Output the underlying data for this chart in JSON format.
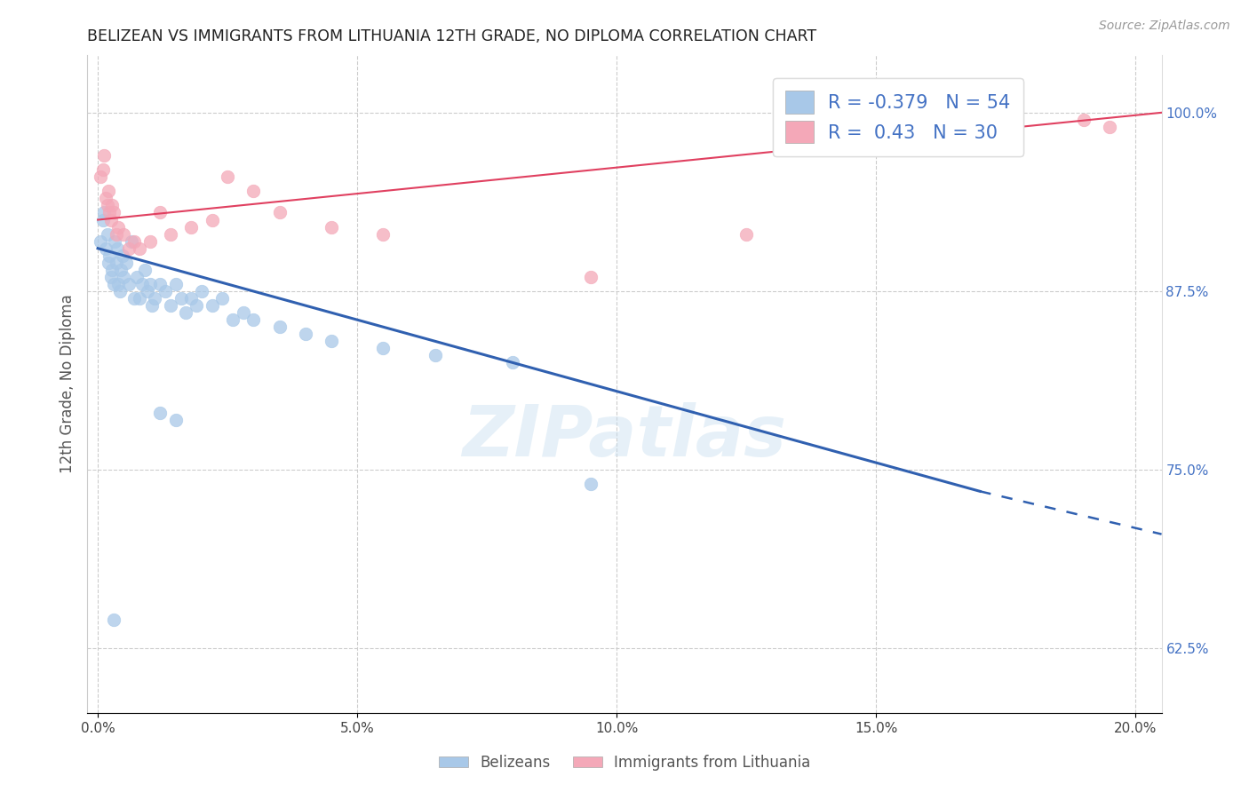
{
  "title": "BELIZEAN VS IMMIGRANTS FROM LITHUANIA 12TH GRADE, NO DIPLOMA CORRELATION CHART",
  "source": "Source: ZipAtlas.com",
  "xlabel_vals": [
    0.0,
    5.0,
    10.0,
    15.0,
    20.0
  ],
  "ylabel": "12th Grade, No Diploma",
  "ylabel_vals": [
    62.5,
    75.0,
    87.5,
    100.0
  ],
  "xlim": [
    -0.2,
    20.5
  ],
  "ylim": [
    58.0,
    104.0
  ],
  "blue_R": -0.379,
  "blue_N": 54,
  "pink_R": 0.43,
  "pink_N": 30,
  "blue_color": "#a8c8e8",
  "pink_color": "#f4a8b8",
  "blue_edge_color": "#a8c8e8",
  "pink_edge_color": "#f4a8b8",
  "blue_line_color": "#3060b0",
  "pink_line_color": "#e04060",
  "legend_label_blue": "Belizeans",
  "legend_label_pink": "Immigrants from Lithuania",
  "watermark": "ZIPatlas",
  "blue_x": [
    0.05,
    0.1,
    0.12,
    0.15,
    0.18,
    0.2,
    0.22,
    0.25,
    0.28,
    0.3,
    0.32,
    0.35,
    0.38,
    0.4,
    0.42,
    0.45,
    0.48,
    0.5,
    0.55,
    0.6,
    0.65,
    0.7,
    0.75,
    0.8,
    0.85,
    0.9,
    0.95,
    1.0,
    1.05,
    1.1,
    1.2,
    1.3,
    1.4,
    1.5,
    1.6,
    1.7,
    1.8,
    1.9,
    2.0,
    2.2,
    2.4,
    2.6,
    2.8,
    3.0,
    3.5,
    4.0,
    4.5,
    5.5,
    6.5,
    8.0,
    9.5,
    0.3,
    1.2,
    1.5
  ],
  "blue_y": [
    91.0,
    92.5,
    93.0,
    90.5,
    91.5,
    89.5,
    90.0,
    88.5,
    89.0,
    88.0,
    91.0,
    89.5,
    90.5,
    88.0,
    87.5,
    89.0,
    90.0,
    88.5,
    89.5,
    88.0,
    91.0,
    87.0,
    88.5,
    87.0,
    88.0,
    89.0,
    87.5,
    88.0,
    86.5,
    87.0,
    88.0,
    87.5,
    86.5,
    88.0,
    87.0,
    86.0,
    87.0,
    86.5,
    87.5,
    86.5,
    87.0,
    85.5,
    86.0,
    85.5,
    85.0,
    84.5,
    84.0,
    83.5,
    83.0,
    82.5,
    74.0,
    64.5,
    79.0,
    78.5
  ],
  "pink_x": [
    0.05,
    0.1,
    0.12,
    0.15,
    0.18,
    0.2,
    0.22,
    0.25,
    0.28,
    0.3,
    0.35,
    0.4,
    0.5,
    0.6,
    0.7,
    0.8,
    1.0,
    1.2,
    1.4,
    1.8,
    2.2,
    2.5,
    3.0,
    3.5,
    4.5,
    5.5,
    9.5,
    12.5,
    19.0,
    19.5
  ],
  "pink_y": [
    95.5,
    96.0,
    97.0,
    94.0,
    93.5,
    94.5,
    93.0,
    92.5,
    93.5,
    93.0,
    91.5,
    92.0,
    91.5,
    90.5,
    91.0,
    90.5,
    91.0,
    93.0,
    91.5,
    92.0,
    92.5,
    95.5,
    94.5,
    93.0,
    92.0,
    91.5,
    88.5,
    91.5,
    99.5,
    99.0
  ],
  "blue_trendline_x0": 0.0,
  "blue_trendline_y0": 90.5,
  "blue_trendline_x1": 17.0,
  "blue_trendline_y1": 73.5,
  "blue_dash_x0": 17.0,
  "blue_dash_y0": 73.5,
  "blue_dash_x1": 20.5,
  "blue_dash_y1": 70.5,
  "pink_trendline_x0": 0.0,
  "pink_trendline_y0": 92.5,
  "pink_trendline_x1": 20.5,
  "pink_trendline_y1": 100.0
}
